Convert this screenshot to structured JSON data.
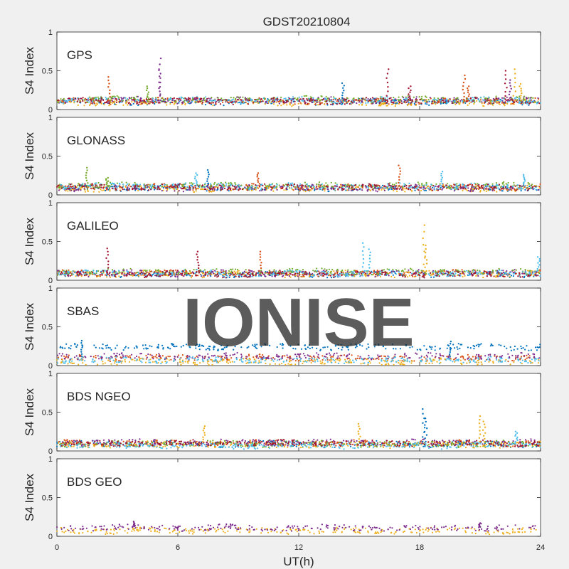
{
  "chart_data": {
    "type": "scatter",
    "title": "GDST20210804",
    "xlabel": "UT(h)",
    "ylabel": "S4 Index",
    "xlim": [
      0,
      24
    ],
    "xticks": [
      "0",
      "6",
      "12",
      "18",
      "24"
    ],
    "ylim": [
      0,
      1
    ],
    "yticks": [
      "0",
      "0.5",
      "1"
    ],
    "grid": false,
    "watermark": "IONISE",
    "colors": [
      "#0072BD",
      "#D95319",
      "#EDB120",
      "#7E2F8E",
      "#77AC30",
      "#4DBEEE",
      "#A2142F"
    ],
    "panels": [
      {
        "name": "GPS",
        "baselines": [
          0.1,
          0.11,
          0.09,
          0.12,
          0.13,
          0.12,
          0.11
        ],
        "spikes": [
          {
            "x": 2.6,
            "y": 0.42,
            "series": 1
          },
          {
            "x": 4.5,
            "y": 0.3,
            "series": 4
          },
          {
            "x": 5.1,
            "y": 0.66,
            "series": 3
          },
          {
            "x": 5.1,
            "y": 0.52,
            "series": 3
          },
          {
            "x": 14.2,
            "y": 0.34,
            "series": 0
          },
          {
            "x": 16.4,
            "y": 0.52,
            "series": 6
          },
          {
            "x": 17.5,
            "y": 0.3,
            "series": 6
          },
          {
            "x": 20.2,
            "y": 0.44,
            "series": 1
          },
          {
            "x": 20.4,
            "y": 0.3,
            "series": 1
          },
          {
            "x": 22.3,
            "y": 0.5,
            "series": 6
          },
          {
            "x": 22.5,
            "y": 0.38,
            "series": 3
          },
          {
            "x": 22.7,
            "y": 0.52,
            "series": 2
          },
          {
            "x": 23.0,
            "y": 0.33,
            "series": 2
          }
        ]
      },
      {
        "name": "GLONASS",
        "baselines": [
          0.09,
          0.1,
          0.08,
          0.09,
          0.12,
          0.11,
          0.1
        ],
        "spikes": [
          {
            "x": 1.5,
            "y": 0.35,
            "series": 4
          },
          {
            "x": 2.5,
            "y": 0.22,
            "series": 4
          },
          {
            "x": 6.9,
            "y": 0.28,
            "series": 5
          },
          {
            "x": 7.5,
            "y": 0.32,
            "series": 0
          },
          {
            "x": 10.0,
            "y": 0.28,
            "series": 1
          },
          {
            "x": 17.0,
            "y": 0.38,
            "series": 1
          },
          {
            "x": 19.1,
            "y": 0.3,
            "series": 5
          },
          {
            "x": 23.2,
            "y": 0.26,
            "series": 5
          }
        ]
      },
      {
        "name": "GALILEO",
        "baselines": [
          0.08,
          0.09,
          0.08,
          0.09,
          0.11,
          0.09,
          0.08
        ],
        "spikes": [
          {
            "x": 2.5,
            "y": 0.41,
            "series": 6
          },
          {
            "x": 7.0,
            "y": 0.37,
            "series": 6
          },
          {
            "x": 10.1,
            "y": 0.37,
            "series": 1
          },
          {
            "x": 15.2,
            "y": 0.48,
            "series": 5
          },
          {
            "x": 15.5,
            "y": 0.4,
            "series": 5
          },
          {
            "x": 18.2,
            "y": 0.71,
            "series": 2
          },
          {
            "x": 18.3,
            "y": 0.45,
            "series": 2
          },
          {
            "x": 23.9,
            "y": 0.3,
            "series": 5
          }
        ]
      },
      {
        "name": "SBAS",
        "baselines": [
          0.24,
          0.1,
          0.05,
          0.12,
          0.0,
          0.07,
          0.0
        ],
        "spikes": [
          {
            "x": 1.2,
            "y": 0.32,
            "series": 0
          },
          {
            "x": 19.5,
            "y": 0.31,
            "series": 0
          }
        ]
      },
      {
        "name": "BDS NGEO",
        "baselines": [
          0.09,
          0.1,
          0.08,
          0.11,
          0.09,
          0.07,
          0.1
        ],
        "spikes": [
          {
            "x": 7.3,
            "y": 0.32,
            "series": 2
          },
          {
            "x": 15.0,
            "y": 0.35,
            "series": 2
          },
          {
            "x": 18.2,
            "y": 0.54,
            "series": 0
          },
          {
            "x": 18.3,
            "y": 0.42,
            "series": 0
          },
          {
            "x": 21.0,
            "y": 0.45,
            "series": 2
          },
          {
            "x": 21.2,
            "y": 0.38,
            "series": 2
          },
          {
            "x": 22.8,
            "y": 0.25,
            "series": 5
          }
        ]
      },
      {
        "name": "BDS GEO",
        "baselines": [
          0.0,
          0.0,
          0.07,
          0.11,
          0.0,
          0.0,
          0.0
        ],
        "spikes": [
          {
            "x": 3.8,
            "y": 0.19,
            "series": 3
          },
          {
            "x": 21.0,
            "y": 0.17,
            "series": 3
          }
        ]
      }
    ]
  }
}
